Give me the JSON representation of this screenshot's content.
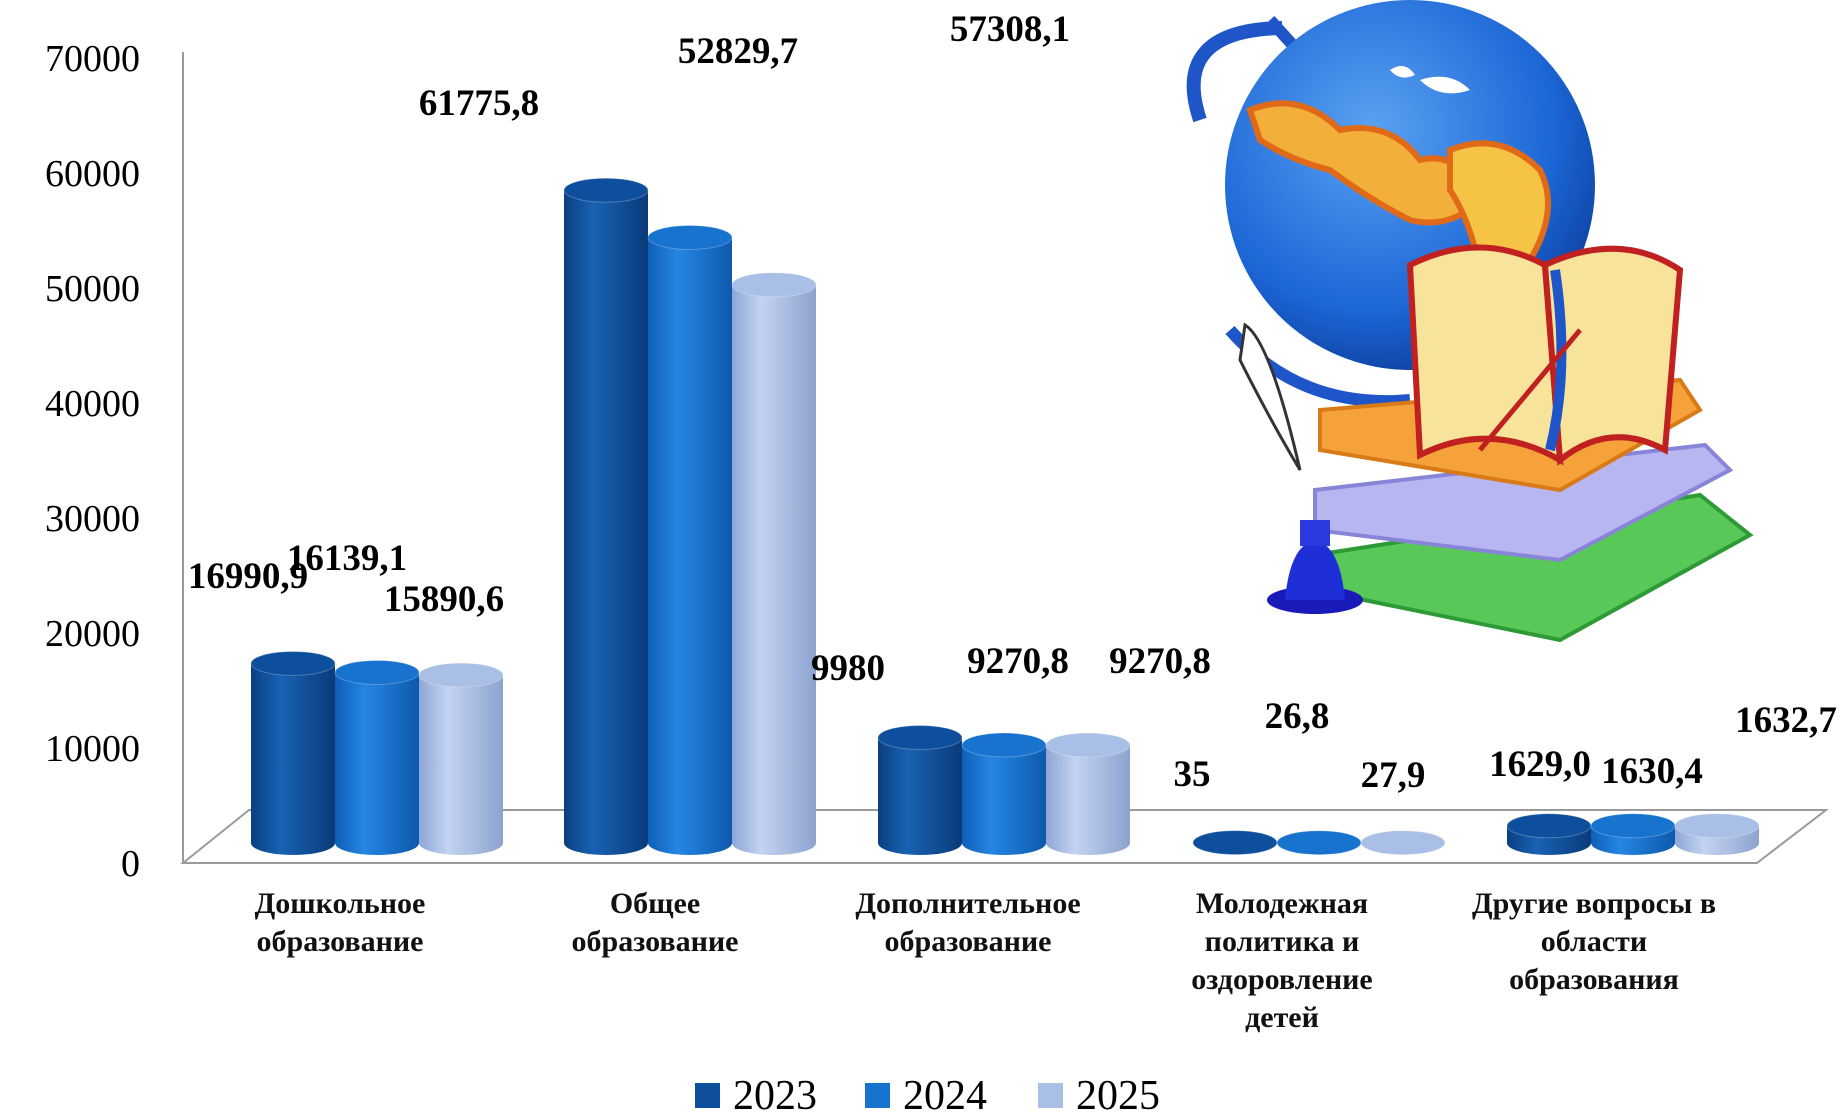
{
  "chart_data": {
    "type": "bar",
    "categories": [
      [
        "Дошкольное",
        "образование"
      ],
      [
        "Общее",
        "образование"
      ],
      [
        "Дополнительное",
        "образование"
      ],
      [
        "Молодежная",
        "политика и",
        "оздоровление",
        "детей"
      ],
      [
        "Другие вопросы в",
        "области",
        "образования"
      ]
    ],
    "series": [
      {
        "name": "2023",
        "values": [
          16990.9,
          61775.8,
          9980,
          35,
          1629.0
        ],
        "labels": [
          "16990,9",
          "61775,8",
          "9980",
          "35",
          "1629,0"
        ]
      },
      {
        "name": "2024",
        "values": [
          16139.1,
          57308.1,
          9270.8,
          26.8,
          1630.4
        ],
        "labels": [
          "16139,1",
          "57308,1",
          "9270,8",
          "26,8",
          "1630,4"
        ]
      },
      {
        "name": "2025",
        "values": [
          15890.6,
          52829.7,
          9270.8,
          27.9,
          1632.7
        ],
        "labels": [
          "15890,6",
          "52829,7",
          "9270,8",
          "27,9",
          "1632,7"
        ]
      }
    ],
    "yticks": [
      "0",
      "10000",
      "20000",
      "30000",
      "40000",
      "50000",
      "60000",
      "70000"
    ],
    "ylim": [
      0,
      70000
    ],
    "legend_position": "bottom",
    "colors": {
      "2023": "#0d4f9c",
      "2024": "#1873cf",
      "2025": "#a9bfe6"
    }
  },
  "illustration": {
    "icon": "globe-books-quill-illustration"
  }
}
